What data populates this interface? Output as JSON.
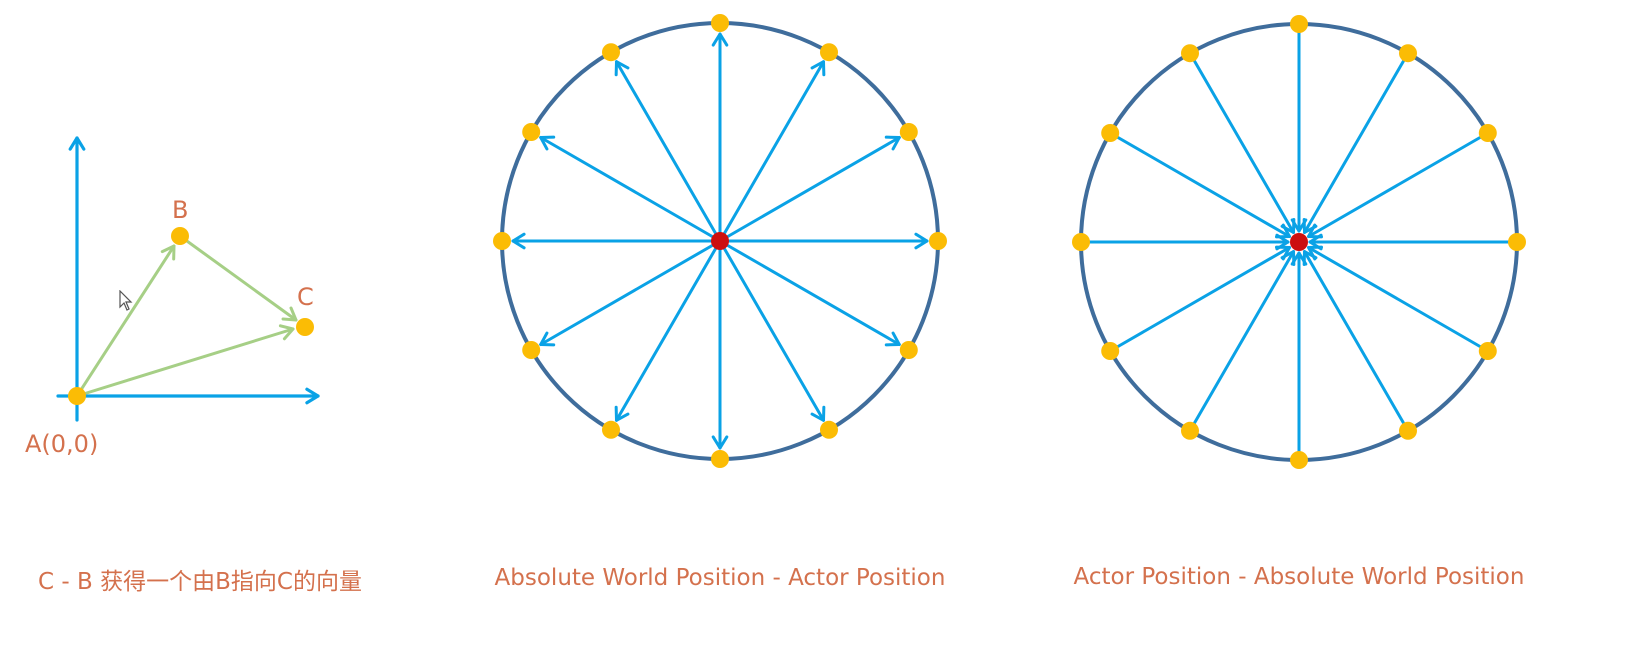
{
  "colors": {
    "axis": "#0aa2e6",
    "vector_green": "#a6cf86",
    "point": "#fbbc05",
    "center": "#cc0f0f",
    "circle": "#3f6d9c",
    "text": "#d4714d"
  },
  "vector_diagram": {
    "point_a_label": "A(0,0)",
    "point_b_label": "B",
    "point_c_label": "C",
    "caption": "C - B 获得一个由B指向C的向量"
  },
  "circle_outward": {
    "caption": "Absolute World Position - Actor Position",
    "spoke_count": 12
  },
  "circle_inward": {
    "caption": "Actor Position - Absolute World Position",
    "spoke_count": 12
  },
  "icons": {
    "cursor": "mouse-pointer-icon"
  }
}
